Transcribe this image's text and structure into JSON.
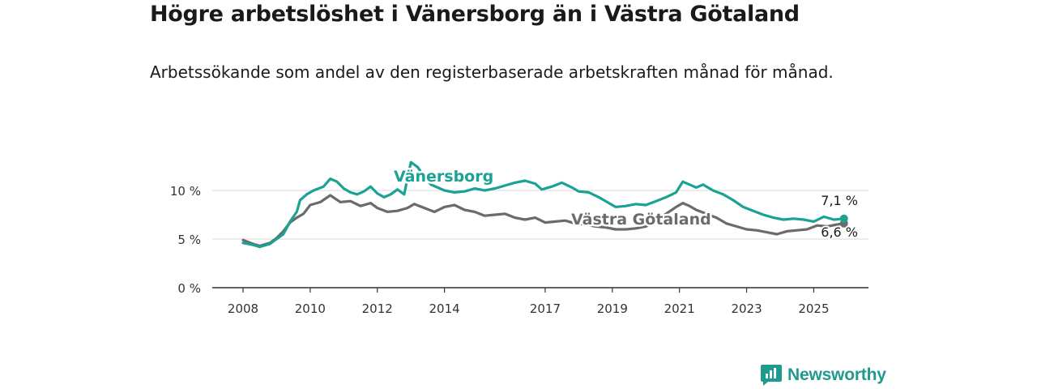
{
  "header": {
    "title": "Högre arbetslöshet i Vänersborg än i Västra Götaland",
    "subtitle": "Arbetssökande som andel av den registerbaserade arbetskraften månad för månad."
  },
  "brand": {
    "name": "Newsworthy",
    "color": "#1f9a8e",
    "icon": "newsworthy-logo-icon"
  },
  "chart_data": {
    "type": "line",
    "xlim": [
      2008,
      2026.1
    ],
    "ylim": [
      0,
      12.5
    ],
    "x_ticks": [
      {
        "value": 2008,
        "label": "2008"
      },
      {
        "value": 2010,
        "label": "2010"
      },
      {
        "value": 2012,
        "label": "2012"
      },
      {
        "value": 2014,
        "label": "2014"
      },
      {
        "value": 2017,
        "label": "2017"
      },
      {
        "value": 2019,
        "label": "2019"
      },
      {
        "value": 2021,
        "label": "2021"
      },
      {
        "value": 2023,
        "label": "2023"
      },
      {
        "value": 2025,
        "label": "2025"
      }
    ],
    "y_ticks": [
      {
        "value": 0,
        "label": "0 %"
      },
      {
        "value": 5,
        "label": "5 %"
      },
      {
        "value": 10,
        "label": "10 %"
      }
    ],
    "grid": true,
    "series": [
      {
        "name": "Vänersborg",
        "color": "#1aa394",
        "end_label": "7,1 %",
        "points": [
          [
            2008.0,
            4.6
          ],
          [
            2008.3,
            4.4
          ],
          [
            2008.5,
            4.2
          ],
          [
            2008.8,
            4.5
          ],
          [
            2009.0,
            5.0
          ],
          [
            2009.2,
            5.5
          ],
          [
            2009.4,
            6.8
          ],
          [
            2009.6,
            7.8
          ],
          [
            2009.7,
            9.0
          ],
          [
            2009.9,
            9.6
          ],
          [
            2010.1,
            10.0
          ],
          [
            2010.4,
            10.4
          ],
          [
            2010.6,
            11.2
          ],
          [
            2010.8,
            10.9
          ],
          [
            2011.0,
            10.2
          ],
          [
            2011.2,
            9.8
          ],
          [
            2011.4,
            9.6
          ],
          [
            2011.6,
            9.9
          ],
          [
            2011.8,
            10.4
          ],
          [
            2012.0,
            9.7
          ],
          [
            2012.2,
            9.3
          ],
          [
            2012.4,
            9.6
          ],
          [
            2012.6,
            10.1
          ],
          [
            2012.8,
            9.6
          ],
          [
            2013.0,
            12.9
          ],
          [
            2013.2,
            12.4
          ],
          [
            2013.4,
            11.4
          ],
          [
            2013.6,
            10.6
          ],
          [
            2013.8,
            10.3
          ],
          [
            2014.0,
            10.0
          ],
          [
            2014.3,
            9.8
          ],
          [
            2014.6,
            9.9
          ],
          [
            2014.9,
            10.2
          ],
          [
            2015.2,
            10.0
          ],
          [
            2015.5,
            10.2
          ],
          [
            2015.8,
            10.5
          ],
          [
            2016.1,
            10.8
          ],
          [
            2016.4,
            11.0
          ],
          [
            2016.7,
            10.7
          ],
          [
            2016.9,
            10.1
          ],
          [
            2017.2,
            10.4
          ],
          [
            2017.5,
            10.8
          ],
          [
            2017.8,
            10.3
          ],
          [
            2018.0,
            9.9
          ],
          [
            2018.3,
            9.8
          ],
          [
            2018.6,
            9.3
          ],
          [
            2018.9,
            8.7
          ],
          [
            2019.1,
            8.3
          ],
          [
            2019.4,
            8.4
          ],
          [
            2019.7,
            8.6
          ],
          [
            2020.0,
            8.5
          ],
          [
            2020.3,
            8.9
          ],
          [
            2020.6,
            9.3
          ],
          [
            2020.9,
            9.8
          ],
          [
            2021.1,
            10.9
          ],
          [
            2021.3,
            10.6
          ],
          [
            2021.5,
            10.3
          ],
          [
            2021.7,
            10.6
          ],
          [
            2022.0,
            10.0
          ],
          [
            2022.3,
            9.6
          ],
          [
            2022.6,
            9.0
          ],
          [
            2022.9,
            8.3
          ],
          [
            2023.2,
            7.9
          ],
          [
            2023.5,
            7.5
          ],
          [
            2023.8,
            7.2
          ],
          [
            2024.1,
            7.0
          ],
          [
            2024.4,
            7.1
          ],
          [
            2024.7,
            7.0
          ],
          [
            2025.0,
            6.8
          ],
          [
            2025.3,
            7.3
          ],
          [
            2025.6,
            7.0
          ],
          [
            2025.9,
            7.1
          ]
        ]
      },
      {
        "name": "Västra Götaland",
        "color": "#6b6b6b",
        "end_label": "6,6 %",
        "points": [
          [
            2008.0,
            4.9
          ],
          [
            2008.3,
            4.5
          ],
          [
            2008.5,
            4.3
          ],
          [
            2008.8,
            4.6
          ],
          [
            2009.0,
            5.1
          ],
          [
            2009.2,
            5.8
          ],
          [
            2009.4,
            6.7
          ],
          [
            2009.6,
            7.2
          ],
          [
            2009.8,
            7.6
          ],
          [
            2010.0,
            8.5
          ],
          [
            2010.3,
            8.8
          ],
          [
            2010.6,
            9.5
          ],
          [
            2010.9,
            8.8
          ],
          [
            2011.2,
            8.9
          ],
          [
            2011.5,
            8.4
          ],
          [
            2011.8,
            8.7
          ],
          [
            2012.0,
            8.2
          ],
          [
            2012.3,
            7.8
          ],
          [
            2012.6,
            7.9
          ],
          [
            2012.9,
            8.2
          ],
          [
            2013.1,
            8.6
          ],
          [
            2013.4,
            8.2
          ],
          [
            2013.7,
            7.8
          ],
          [
            2014.0,
            8.3
          ],
          [
            2014.3,
            8.5
          ],
          [
            2014.6,
            8.0
          ],
          [
            2014.9,
            7.8
          ],
          [
            2015.2,
            7.4
          ],
          [
            2015.5,
            7.5
          ],
          [
            2015.8,
            7.6
          ],
          [
            2016.1,
            7.2
          ],
          [
            2016.4,
            7.0
          ],
          [
            2016.7,
            7.2
          ],
          [
            2017.0,
            6.7
          ],
          [
            2017.3,
            6.8
          ],
          [
            2017.6,
            6.9
          ],
          [
            2017.9,
            6.6
          ],
          [
            2018.2,
            6.5
          ],
          [
            2018.5,
            6.3
          ],
          [
            2018.8,
            6.2
          ],
          [
            2019.1,
            6.0
          ],
          [
            2019.4,
            6.0
          ],
          [
            2019.7,
            6.1
          ],
          [
            2020.0,
            6.3
          ],
          [
            2020.3,
            6.8
          ],
          [
            2020.6,
            7.6
          ],
          [
            2020.9,
            8.3
          ],
          [
            2021.1,
            8.7
          ],
          [
            2021.3,
            8.4
          ],
          [
            2021.5,
            8.0
          ],
          [
            2021.8,
            7.6
          ],
          [
            2022.1,
            7.2
          ],
          [
            2022.4,
            6.6
          ],
          [
            2022.7,
            6.3
          ],
          [
            2023.0,
            6.0
          ],
          [
            2023.3,
            5.9
          ],
          [
            2023.6,
            5.7
          ],
          [
            2023.9,
            5.5
          ],
          [
            2024.2,
            5.8
          ],
          [
            2024.5,
            5.9
          ],
          [
            2024.8,
            6.0
          ],
          [
            2025.1,
            6.4
          ],
          [
            2025.4,
            6.3
          ],
          [
            2025.7,
            6.5
          ],
          [
            2025.9,
            6.6
          ]
        ]
      }
    ]
  }
}
